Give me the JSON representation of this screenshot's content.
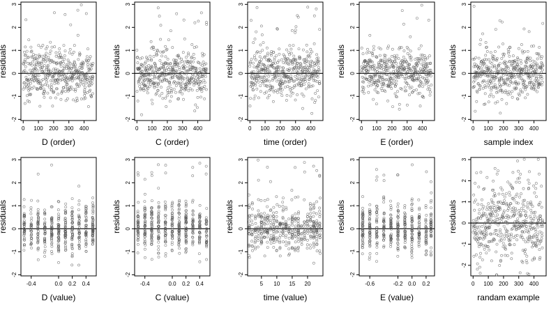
{
  "chart_data": [
    {
      "type": "scatter",
      "xlabel": "D (order)",
      "ylabel": "residuals",
      "xlim": [
        -15,
        480
      ],
      "ylim": [
        -2.05,
        3.1
      ],
      "xticks": [
        0,
        100,
        200,
        300,
        400
      ],
      "xtick_labels": [
        "0",
        "100",
        "200",
        "300",
        "400"
      ],
      "yticks": [
        -2,
        -1,
        0,
        1,
        2,
        3
      ],
      "ytick_labels": [
        "-2",
        "-1",
        "0",
        "1",
        "2",
        "3"
      ],
      "hline": 0,
      "x_kind": "index",
      "seed": 11,
      "n": 460
    },
    {
      "type": "scatter",
      "xlabel": "C (order)",
      "ylabel": "residuals",
      "xlim": [
        -15,
        480
      ],
      "ylim": [
        -2.05,
        3.1
      ],
      "xticks": [
        0,
        100,
        200,
        300,
        400
      ],
      "xtick_labels": [
        "0",
        "100",
        "200",
        "300",
        "400"
      ],
      "yticks": [
        -2,
        -1,
        0,
        1,
        2,
        3
      ],
      "ytick_labels": [
        "-2",
        "-1",
        "0",
        "1",
        "2",
        "3"
      ],
      "hline": 0,
      "x_kind": "index",
      "seed": 23,
      "n": 460
    },
    {
      "type": "scatter",
      "xlabel": "time (order)",
      "ylabel": "residuals",
      "xlim": [
        -15,
        480
      ],
      "ylim": [
        -2.05,
        3.1
      ],
      "xticks": [
        0,
        100,
        200,
        300,
        400
      ],
      "xtick_labels": [
        "0",
        "100",
        "200",
        "300",
        "400"
      ],
      "yticks": [
        -2,
        -1,
        0,
        1,
        2,
        3
      ],
      "ytick_labels": [
        "-2",
        "-1",
        "0",
        "1",
        "2",
        "3"
      ],
      "hline": 0,
      "x_kind": "index",
      "seed": 37,
      "n": 460
    },
    {
      "type": "scatter",
      "xlabel": "E (order)",
      "ylabel": "residuals",
      "xlim": [
        -15,
        480
      ],
      "ylim": [
        -2.05,
        3.1
      ],
      "xticks": [
        0,
        100,
        200,
        300,
        400
      ],
      "xtick_labels": [
        "0",
        "100",
        "200",
        "300",
        "400"
      ],
      "yticks": [
        -2,
        -1,
        0,
        1,
        2,
        3
      ],
      "ytick_labels": [
        "-2",
        "-1",
        "0",
        "1",
        "2",
        "3"
      ],
      "hline": 0,
      "x_kind": "index",
      "seed": 41,
      "n": 460
    },
    {
      "type": "scatter",
      "xlabel": "sample index",
      "ylabel": "residuals",
      "xlim": [
        -15,
        480
      ],
      "ylim": [
        -2.05,
        3.1
      ],
      "xticks": [
        0,
        100,
        200,
        300,
        400
      ],
      "xtick_labels": [
        "0",
        "100",
        "200",
        "300",
        "400"
      ],
      "yticks": [
        -2,
        -1,
        0,
        1,
        2,
        3
      ],
      "ytick_labels": [
        "-2",
        "-1",
        "0",
        "1",
        "2",
        "3"
      ],
      "hline": 0,
      "x_kind": "index",
      "seed": 53,
      "n": 460
    },
    {
      "type": "scatter",
      "xlabel": "D (value)",
      "ylabel": "residuals",
      "xlim": [
        -0.55,
        0.55
      ],
      "ylim": [
        -2.05,
        3.1
      ],
      "xticks": [
        -0.4,
        0.0,
        0.2,
        0.4
      ],
      "xtick_labels": [
        "-0.4",
        "0.0",
        "0.2",
        "0.4"
      ],
      "yticks": [
        -2,
        -1,
        0,
        1,
        2,
        3
      ],
      "ytick_labels": [
        "-2",
        "-1",
        "0",
        "1",
        "2",
        "3"
      ],
      "hline": 0,
      "x_kind": "discrete",
      "x_levels": [
        -0.5,
        -0.4,
        -0.3,
        -0.2,
        -0.1,
        0.0,
        0.1,
        0.2,
        0.3,
        0.4,
        0.5
      ],
      "seed": 67,
      "n": 460
    },
    {
      "type": "scatter",
      "xlabel": "C (value)",
      "ylabel": "residuals",
      "xlim": [
        -0.55,
        0.55
      ],
      "ylim": [
        -2.05,
        3.1
      ],
      "xticks": [
        -0.4,
        0.0,
        0.2,
        0.4
      ],
      "xtick_labels": [
        "-0.4",
        "0.0",
        "0.2",
        "0.4"
      ],
      "yticks": [
        -2,
        -1,
        0,
        1,
        2,
        3
      ],
      "ytick_labels": [
        "-2",
        "-1",
        "0",
        "1",
        "2",
        "3"
      ],
      "hline": 0,
      "x_kind": "discrete",
      "x_levels": [
        -0.5,
        -0.4,
        -0.3,
        -0.2,
        -0.1,
        0.0,
        0.1,
        0.2,
        0.3,
        0.4,
        0.5
      ],
      "seed": 71,
      "n": 460
    },
    {
      "type": "scatter",
      "xlabel": "time (value)",
      "ylabel": "residuals",
      "xlim": [
        0.5,
        25
      ],
      "ylim": [
        -2.05,
        3.1
      ],
      "xticks": [
        5,
        10,
        15,
        20
      ],
      "xtick_labels": [
        "5",
        "10",
        "15",
        "20"
      ],
      "yticks": [
        -2,
        -1,
        0,
        1,
        2,
        3
      ],
      "ytick_labels": [
        "-2",
        "-1",
        "0",
        "1",
        "2",
        "3"
      ],
      "hline": 0,
      "x_kind": "discrete",
      "x_levels": [
        1,
        2,
        3,
        4,
        5,
        6,
        7,
        8,
        9,
        10,
        11,
        12,
        13,
        14,
        15,
        16,
        17,
        18,
        19,
        20,
        21,
        22,
        23,
        24
      ],
      "seed": 83,
      "n": 460
    },
    {
      "type": "scatter",
      "xlabel": "E (value)",
      "ylabel": "residuals",
      "xlim": [
        -0.75,
        0.32
      ],
      "ylim": [
        -2.05,
        3.1
      ],
      "xticks": [
        -0.6,
        -0.2,
        0.0,
        0.2
      ],
      "xtick_labels": [
        "-0.6",
        "-0.2",
        "0.0",
        "0.2"
      ],
      "yticks": [
        -2,
        -1,
        0,
        1,
        2,
        3
      ],
      "ytick_labels": [
        "-2",
        "-1",
        "0",
        "1",
        "2",
        "3"
      ],
      "hline": 0,
      "x_kind": "discrete",
      "x_levels": [
        -0.7,
        -0.6,
        -0.5,
        -0.4,
        -0.3,
        -0.2,
        -0.1,
        0.0,
        0.1,
        0.2,
        0.27
      ],
      "seed": 97,
      "n": 460
    },
    {
      "type": "scatter",
      "xlabel": "randam example",
      "ylabel": "residuals",
      "xlim": [
        -15,
        480
      ],
      "ylim": [
        -2.5,
        3.1
      ],
      "xticks": [
        0,
        100,
        200,
        300,
        400
      ],
      "xtick_labels": [
        "0",
        "100",
        "200",
        "300",
        "400"
      ],
      "yticks": [
        -2,
        -1,
        0,
        1,
        2,
        3
      ],
      "ytick_labels": [
        "-2",
        "-1",
        "0",
        "1",
        "2",
        "3"
      ],
      "hline": 0,
      "x_kind": "uniform",
      "seed": 101,
      "n": 460
    }
  ]
}
